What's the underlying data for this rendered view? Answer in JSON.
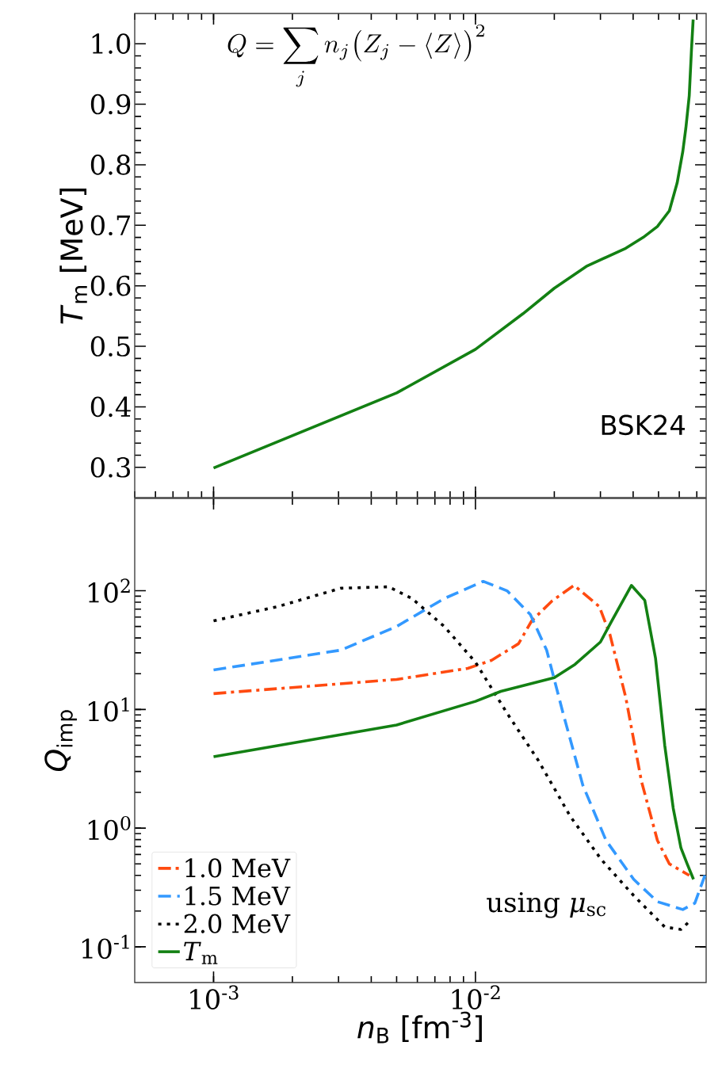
{
  "chart_data": [
    {
      "type": "line",
      "ylabel": "*T*$_{m}$ [MeV]",
      "log": "x",
      "xlim": [
        0.0005,
        0.076
      ],
      "ylim": [
        0.25,
        1.05
      ],
      "yticks": [
        0.3,
        0.4,
        0.5,
        0.6,
        0.7,
        0.8,
        0.9,
        {
          "value": 1.0,
          "label": "1.0"
        }
      ],
      "tick_labels": "y",
      "annotations": [
        "Q = \\sum_j n_j\\bigl(Z_j - \\langle Z\\rangle\\bigr)^2",
        "BSK24"
      ],
      "series": [
        {
          "color": "#138013",
          "line_style": "solid",
          "x": [
            0.001,
            0.005,
            0.01,
            0.0152,
            0.02,
            0.0265,
            0.0375,
            0.0437,
            0.0495,
            0.055,
            0.0589,
            0.0619,
            0.0636,
            0.0655,
            0.0668,
            0.0678
          ],
          "values": [
            0.299,
            0.423,
            0.495,
            0.554,
            0.596,
            0.632,
            0.662,
            0.68,
            0.698,
            0.724,
            0.77,
            0.822,
            0.861,
            0.914,
            0.99,
            1.04
          ]
        }
      ]
    },
    {
      "type": "line",
      "xlabel": "*n*$_{B}$ [fm$^{-3}$]",
      "ylabel": "*Q*$_{imp}$",
      "log": "xy",
      "xlim": [
        0.0005,
        0.076
      ],
      "ylim": [
        0.05,
        600
      ],
      "xticks": [
        {
          "value": 0.001,
          "label": "10$^{-3}$"
        },
        {
          "value": 0.01,
          "label": "10$^{-2}$"
        }
      ],
      "yticks": [
        {
          "value": 0.1,
          "label": "10$^{-1}$"
        },
        {
          "value": 1,
          "label": "10$^{0}$"
        },
        {
          "value": 10,
          "label": "10$^{1}$"
        },
        {
          "value": 100,
          "label": "10$^{2}$"
        }
      ],
      "legend": "bottom left",
      "annotations": [
        "using *μ*$_{sc}$"
      ],
      "series": [
        {
          "name": "1.0 MeV",
          "color": "#ff4a10",
          "line_style": "dashdot",
          "x": [
            0.001,
            0.005,
            0.00935,
            0.0115,
            0.0146,
            0.0164,
            0.0196,
            0.0238,
            0.0297,
            0.0326,
            0.0375,
            0.043,
            0.0495,
            0.055,
            0.0655
          ],
          "values": [
            13.6,
            17.9,
            22.2,
            25.9,
            35.8,
            55.8,
            82,
            111,
            73.6,
            43,
            12.6,
            2.5,
            0.79,
            0.5,
            0.4
          ]
        },
        {
          "name": "1.5 MeV",
          "color": "#3399ff",
          "line_style": "dashed",
          "x": [
            0.001,
            0.00306,
            0.005,
            0.0076,
            0.0107,
            0.0132,
            0.0162,
            0.0187,
            0.0216,
            0.0257,
            0.0315,
            0.0402,
            0.0495,
            0.0619,
            0.0688,
            0.0752
          ],
          "values": [
            21.5,
            31.6,
            50,
            86,
            120,
            100,
            63,
            31.6,
            9.3,
            2.3,
            0.79,
            0.37,
            0.24,
            0.206,
            0.233,
            0.4
          ]
        },
        {
          "name": "2.0 MeV",
          "color": "#000000",
          "line_style": "dotted",
          "x": [
            0.001,
            0.00176,
            0.00306,
            0.00466,
            0.00573,
            0.0076,
            0.01,
            0.0132,
            0.0174,
            0.023,
            0.0303,
            0.0402,
            0.0528,
            0.0609,
            0.0655
          ],
          "values": [
            55.8,
            73.6,
            105,
            108,
            86,
            50,
            25,
            9.3,
            3.7,
            1.26,
            0.54,
            0.27,
            0.147,
            0.14,
            0.163
          ]
        },
        {
          "name": "*T*$_{m}$",
          "color": "#138013",
          "line_style": "solid",
          "x": [
            0.001,
            0.005,
            0.01,
            0.0125,
            0.02,
            0.024,
            0.03,
            0.0329,
            0.0394,
            0.0443,
            0.0487,
            0.0528,
            0.0569,
            0.0609,
            0.0643,
            0.068
          ],
          "values": [
            4.0,
            7.4,
            11.7,
            14.2,
            18.5,
            24,
            37,
            54,
            111,
            83,
            27,
            5.0,
            1.47,
            0.68,
            0.5,
            0.37
          ]
        }
      ]
    }
  ]
}
